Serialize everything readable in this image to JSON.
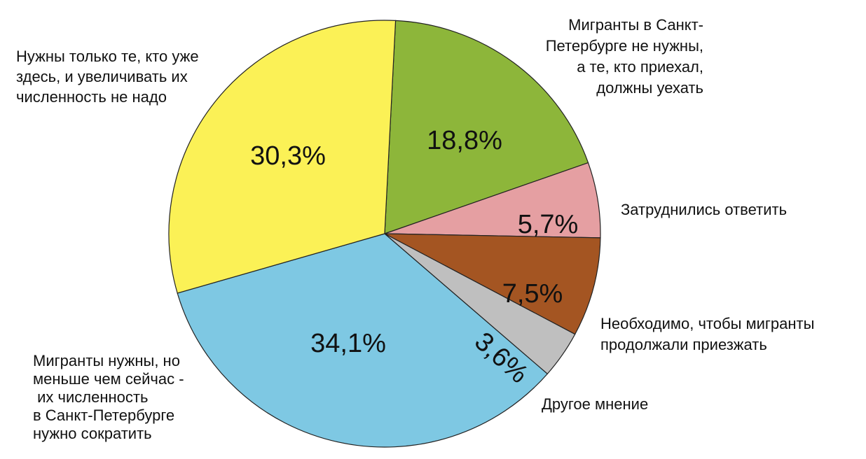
{
  "chart_data": {
    "type": "pie",
    "title": "",
    "slices": [
      {
        "label": [
          "Мигранты в Санкт-",
          "Петербурге не нужны,",
          "а те, кто приехал,",
          "должны уехать"
        ],
        "value": 18.8,
        "value_label": "18,8%",
        "color": "#8db63a"
      },
      {
        "label": [
          "Затруднились ответить"
        ],
        "value": 5.7,
        "value_label": "5,7%",
        "color": "#e59fa2"
      },
      {
        "label": [
          "Необходимо, чтобы мигранты",
          "продолжали приезжать"
        ],
        "value": 7.5,
        "value_label": "7,5%",
        "color": "#a45522"
      },
      {
        "label": [
          "Другое мнение"
        ],
        "value": 3.6,
        "value_label": "3,6%",
        "color": "#bfbfbf"
      },
      {
        "label": [
          "Мигранты нужны, но",
          "меньше чем сейчас -",
          " их численность",
          "в Санкт-Петербурге",
          "нужно сократить"
        ],
        "value": 34.1,
        "value_label": "34,1%",
        "color": "#7ec8e3"
      },
      {
        "label": [
          "Нужны только те, кто уже",
          "здесь, и увеличивать их",
          "численность не надо"
        ],
        "value": 30.3,
        "value_label": "30,3%",
        "color": "#fbf156"
      }
    ]
  }
}
